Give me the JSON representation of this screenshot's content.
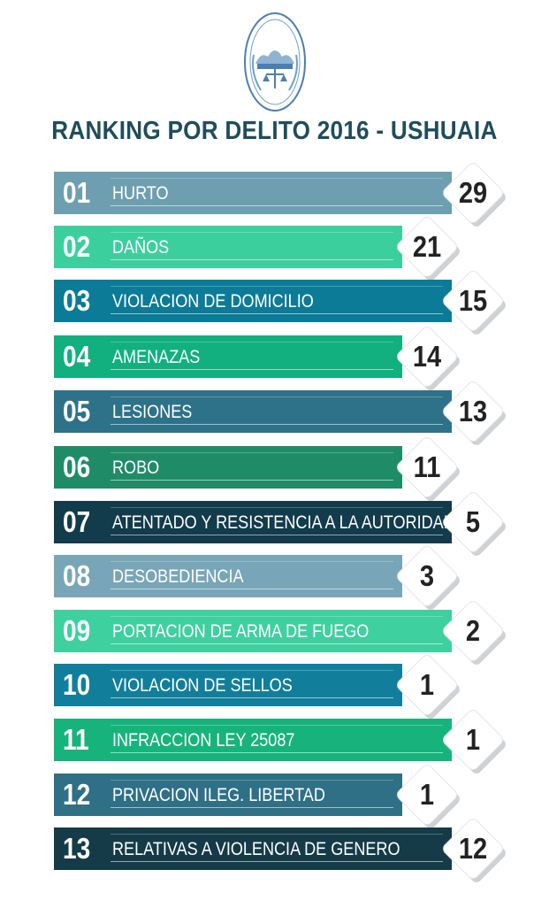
{
  "header": {
    "logo_text": "PODER JUDICIAL",
    "title": "RANKING POR DELITO 2016 - USHUAIA"
  },
  "chart_data": {
    "type": "bar",
    "title": "RANKING POR DELITO 2016 - USHUAIA",
    "categories": [
      "HURTO",
      "DAÑOS",
      "VIOLACION DE DOMICILIO",
      "AMENAZAS",
      "LESIONES",
      "ROBO",
      "ATENTADO Y RESISTENCIA A LA AUTORIDAD",
      "DESOBEDIENCIA",
      "PORTACION DE ARMA DE FUEGO",
      "VIOLACION DE SELLOS",
      "INFRACCION LEY 25087",
      "PRIVACION ILEG. LIBERTAD",
      "RELATIVAS A VIOLENCIA DE GENERO"
    ],
    "ranks": [
      "01",
      "02",
      "03",
      "04",
      "05",
      "06",
      "07",
      "08",
      "09",
      "10",
      "11",
      "12",
      "13"
    ],
    "values": [
      29,
      21,
      15,
      14,
      13,
      11,
      5,
      3,
      2,
      1,
      1,
      1,
      12
    ],
    "colors": [
      "#6e9fb0",
      "#3ccf9e",
      "#0c7b97",
      "#11b07e",
      "#2e7289",
      "#1f8c67",
      "#123b4b",
      "#78a6b8",
      "#3ed09f",
      "#117f9c",
      "#16b47c",
      "#2f7086",
      "#153b49"
    ],
    "long_bar": [
      true,
      false,
      true,
      false,
      true,
      false,
      true,
      false,
      true,
      false,
      true,
      false,
      true
    ]
  }
}
